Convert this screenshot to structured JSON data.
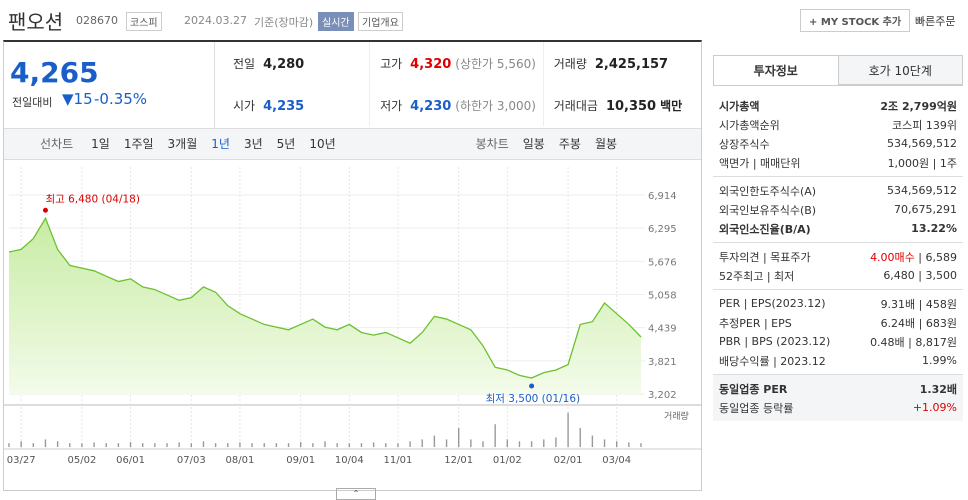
{
  "header": {
    "name": "팬오션",
    "code": "028670",
    "market": "코스피",
    "date": "2024.03.27",
    "basis": "기준(장마감)",
    "realtime": "실시간",
    "company_info": "기업개요",
    "mystock": "MY STOCK 추가",
    "quick_order": "빠른주문"
  },
  "quote": {
    "price": "4,265",
    "change_label": "전일대비",
    "change": "15",
    "change_pct": "-0.35%"
  },
  "summary": [
    {
      "label": "전일",
      "value": "4,280"
    },
    {
      "label": "고가",
      "value": "4,320",
      "note": "(상한가 5,560)"
    },
    {
      "label": "거래량",
      "value": "2,425,157"
    },
    {
      "label": "시가",
      "value": "4,235"
    },
    {
      "label": "저가",
      "value": "4,230",
      "note": "(하한가 3,000)"
    },
    {
      "label": "거래대금",
      "value": "10,350",
      "note": "백만"
    }
  ],
  "tabs": {
    "line_label": "선차트",
    "line": [
      "1일",
      "1주일",
      "3개월",
      "1년",
      "3년",
      "5년",
      "10년"
    ],
    "candle_label": "봉차트",
    "candle": [
      "일봉",
      "주봉",
      "월봉"
    ]
  },
  "chart_data": {
    "type": "line",
    "color": "#6cc12f",
    "categories": [
      null,
      "03/27",
      null,
      null,
      null,
      null,
      "05/02",
      null,
      null,
      null,
      "06/01",
      null,
      null,
      null,
      null,
      "07/03",
      null,
      null,
      null,
      "08/01",
      null,
      null,
      null,
      null,
      "09/01",
      null,
      null,
      null,
      "10/04",
      null,
      null,
      null,
      "11/01",
      null,
      null,
      null,
      null,
      "12/01",
      null,
      null,
      null,
      "01/02",
      null,
      null,
      null,
      null,
      "02/01",
      null,
      null,
      null,
      "03/04",
      null,
      null
    ],
    "values": [
      5850,
      5900,
      6100,
      6480,
      5900,
      5600,
      5550,
      5500,
      5400,
      5300,
      5350,
      5200,
      5150,
      5050,
      4950,
      5000,
      5200,
      5100,
      4850,
      4700,
      4600,
      4500,
      4450,
      4400,
      4500,
      4600,
      4450,
      4400,
      4500,
      4350,
      4300,
      4350,
      4250,
      4150,
      4350,
      4650,
      4600,
      4500,
      4400,
      4100,
      3700,
      3650,
      3550,
      3500,
      3600,
      3650,
      3750,
      4500,
      4550,
      4900,
      4700,
      4500,
      4265
    ],
    "ylim": [
      3202,
      6914
    ],
    "yticks": [
      {
        "value": 3202,
        "label": "3,202"
      },
      {
        "value": 3821,
        "label": "3,821"
      },
      {
        "value": 4439,
        "label": "4,439"
      },
      {
        "value": 5058,
        "label": "5,058"
      },
      {
        "value": 5676,
        "label": "5,676"
      },
      {
        "value": 6295,
        "label": "6,295"
      },
      {
        "value": 6914,
        "label": "6,914"
      }
    ],
    "annotations": [
      {
        "text": "최고 6,480 (04/18)",
        "value": 6480,
        "color": "#d00"
      },
      {
        "text": "최저 3,500 (01/16)",
        "value": 3500,
        "color": "#1a5fc9"
      }
    ],
    "volume": {
      "label": "거래량",
      "ylim": [
        0,
        10
      ],
      "values": [
        1,
        1.5,
        1,
        2,
        1.5,
        1,
        1,
        1.2,
        1,
        1,
        1.3,
        1,
        1,
        1,
        1.2,
        1,
        1.5,
        1,
        1,
        1.2,
        1,
        1,
        1,
        1,
        1.3,
        1,
        1.5,
        1,
        1,
        1,
        1.2,
        1,
        1,
        1.5,
        2,
        3,
        2,
        5,
        2,
        1.5,
        6,
        2,
        1.5,
        1.5,
        2,
        2.5,
        9,
        5,
        3,
        2,
        1.5,
        1.2,
        1
      ]
    }
  },
  "side": {
    "tabs": [
      "투자정보",
      "호가 10단계"
    ],
    "groups": [
      [
        {
          "label": "시가총액",
          "value": "2조 2,799억원",
          "strong": true
        },
        {
          "label": "시가총액순위",
          "value": "코스피 139위"
        },
        {
          "label": "상장주식수",
          "value": "534,569,512"
        },
        {
          "label": "액면가 | 매매단위",
          "value": "1,000원 | 1주"
        }
      ],
      [
        {
          "label": "외국인한도주식수(A)",
          "value": "534,569,512"
        },
        {
          "label": "외국인보유주식수(B)",
          "value": "70,675,291"
        },
        {
          "label": "외국인소진율(B/A)",
          "value": "13.22%",
          "strong": true
        }
      ],
      [
        {
          "label": "투자의견 | 목표주가",
          "value": "4.00매수",
          "value2": "6,589",
          "color": "#d00"
        },
        {
          "label": "52주최고 | 최저",
          "value": "6,480 | 3,500"
        }
      ],
      [
        {
          "label": "PER | EPS(2023.12)",
          "value": "9.31배 | 458원"
        },
        {
          "label": "추정PER | EPS",
          "value": "6.24배 | 683원"
        },
        {
          "label": "PBR | BPS (2023.12)",
          "value": "0.48배 | 8,817원"
        },
        {
          "label": "배당수익률 | 2023.12",
          "value": "1.99%"
        }
      ],
      [
        {
          "label": "동일업종 PER",
          "value": "1.32배",
          "strong": true
        },
        {
          "label": "동일업종 등락률",
          "value": "+1.09%",
          "color": "#d00"
        }
      ]
    ]
  }
}
